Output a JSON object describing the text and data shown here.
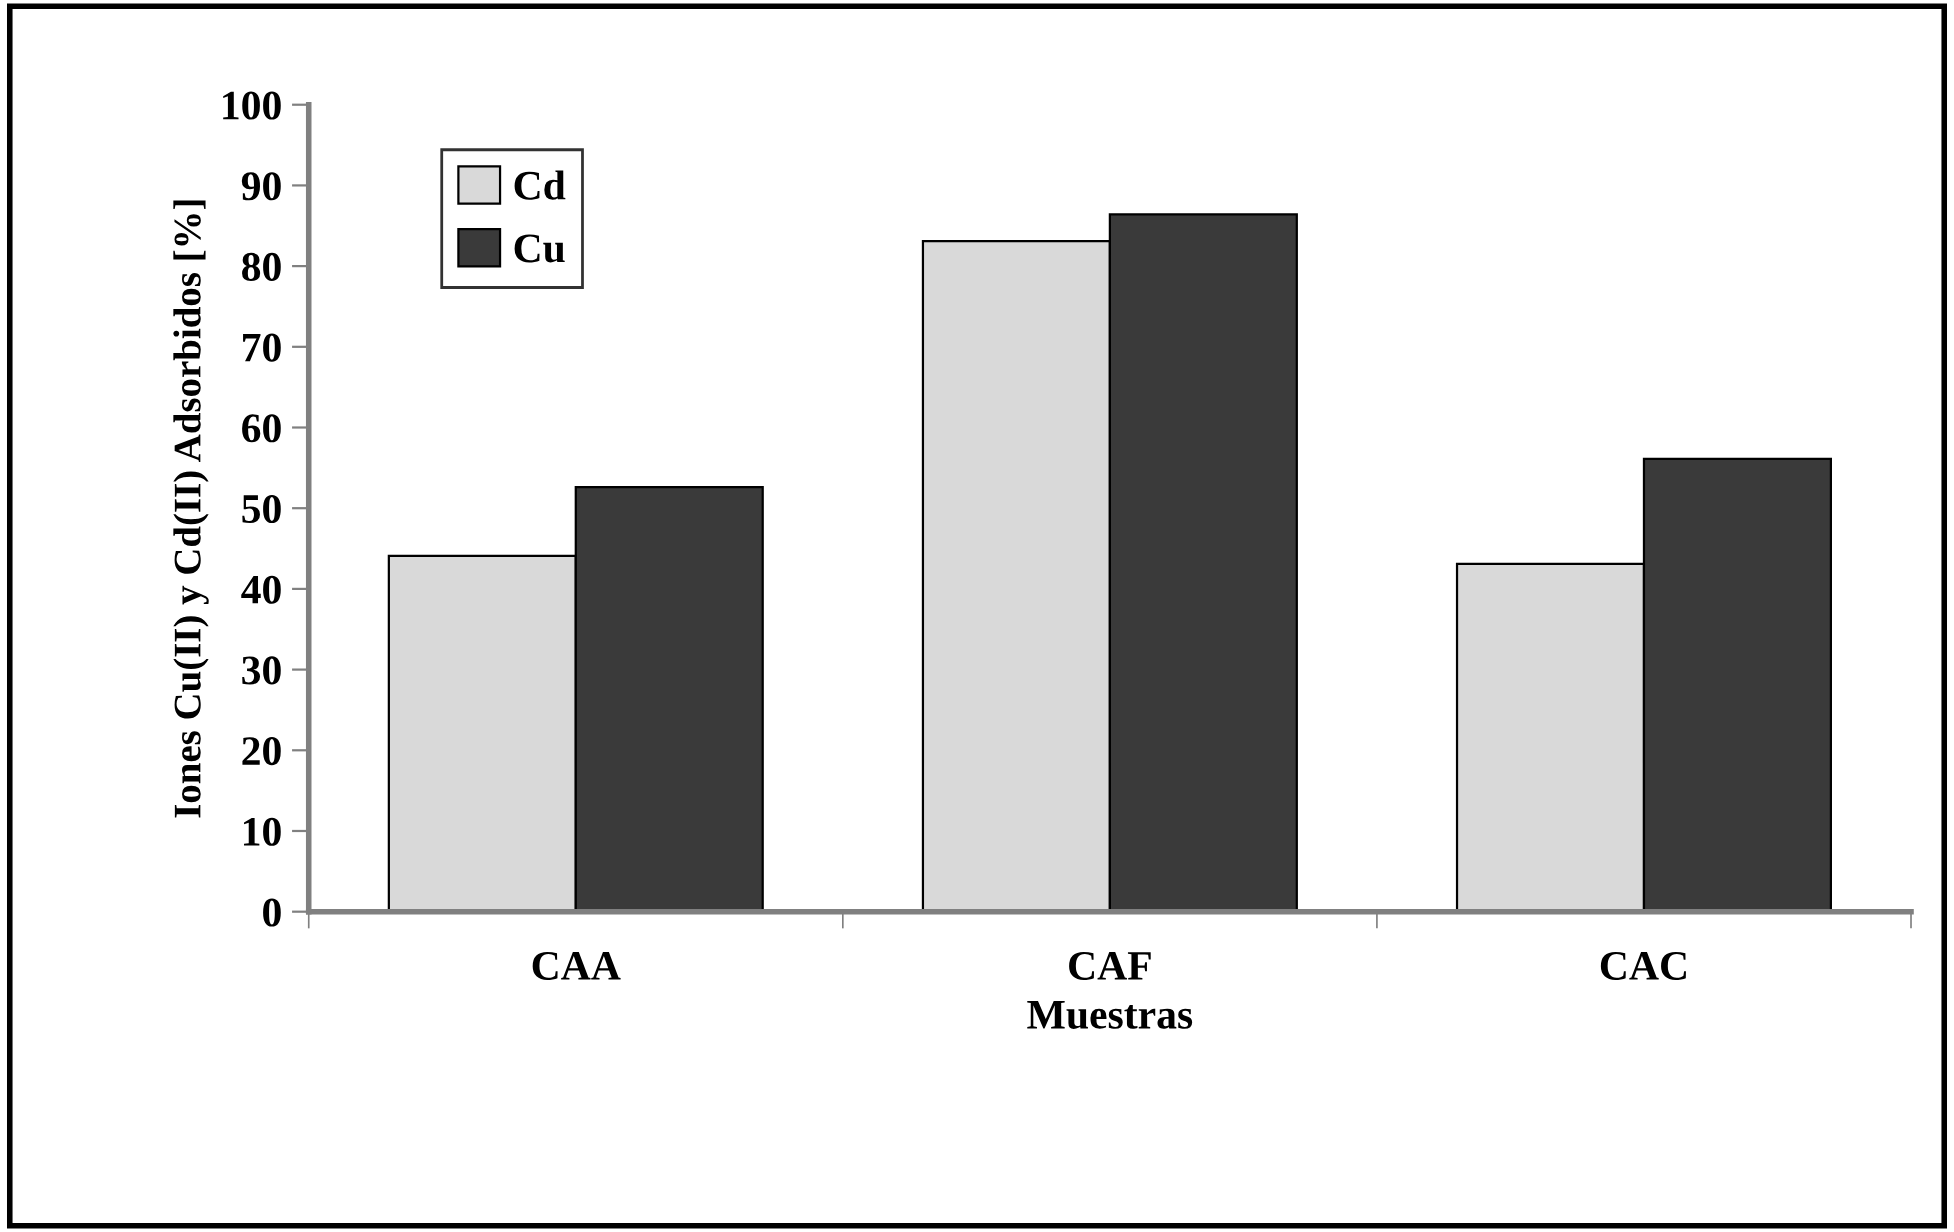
{
  "chart_data": {
    "type": "bar",
    "xlabel": "Muestras",
    "ylabel": "Iones Cu(II) y Cd(II) Adsorbidos [%]",
    "categories": [
      "CAA",
      "CAF",
      "CAC"
    ],
    "series": [
      {
        "name": "Cd",
        "color": "#d9d9d9",
        "values": [
          44.1,
          83.1,
          43.1
        ]
      },
      {
        "name": "Cu",
        "color": "#3a3a3a",
        "values": [
          52.6,
          86.4,
          56.1
        ]
      }
    ],
    "ylim": [
      0,
      100
    ],
    "yticks": [
      0,
      10,
      20,
      30,
      40,
      50,
      60,
      70,
      80,
      90,
      100
    ],
    "grid": false,
    "legend": "top left"
  }
}
